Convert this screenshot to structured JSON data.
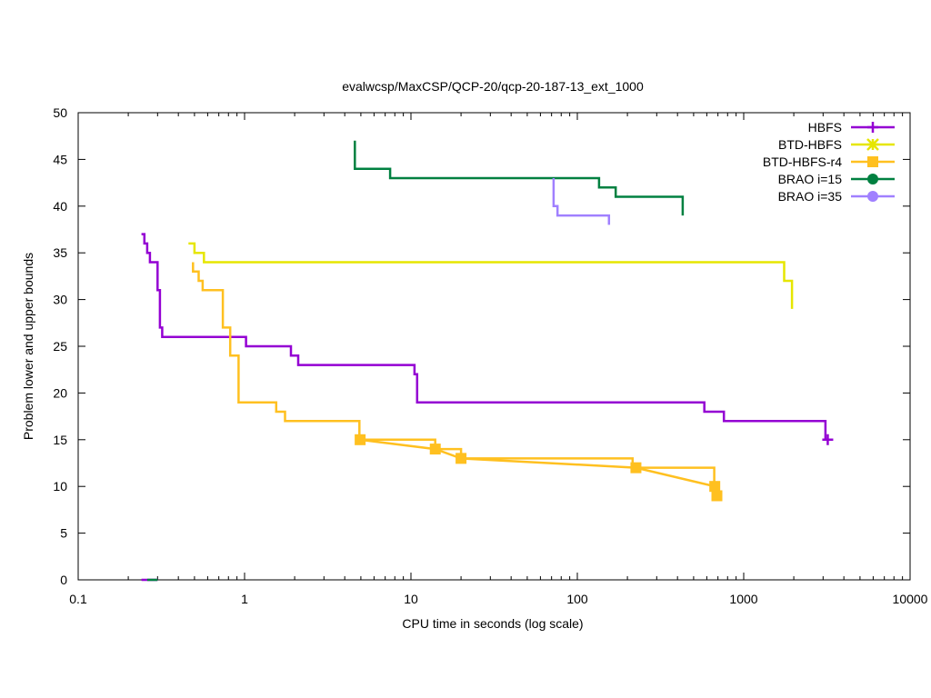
{
  "chart_data": {
    "type": "line",
    "title": "evalwcsp/MaxCSP/QCP-20/qcp-20-187-13_ext_1000",
    "xlabel": "CPU time in seconds (log scale)",
    "ylabel": "Problem lower and upper bounds",
    "xscale": "log",
    "xlim": [
      0.1,
      10000
    ],
    "ylim": [
      0,
      50
    ],
    "xticks": [
      {
        "value": 0.1,
        "label": "0.1"
      },
      {
        "value": 1,
        "label": "1"
      },
      {
        "value": 10,
        "label": "10"
      },
      {
        "value": 100,
        "label": "100"
      },
      {
        "value": 1000,
        "label": "1000"
      },
      {
        "value": 10000,
        "label": "10000"
      }
    ],
    "yticks": [
      {
        "value": 0,
        "label": "0"
      },
      {
        "value": 5,
        "label": "5"
      },
      {
        "value": 10,
        "label": "10"
      },
      {
        "value": 15,
        "label": "15"
      },
      {
        "value": 20,
        "label": "20"
      },
      {
        "value": 25,
        "label": "25"
      },
      {
        "value": 30,
        "label": "30"
      },
      {
        "value": 35,
        "label": "35"
      },
      {
        "value": 40,
        "label": "40"
      },
      {
        "value": 45,
        "label": "45"
      },
      {
        "value": 50,
        "label": "50"
      }
    ],
    "legend_position": "top-right",
    "series": [
      {
        "name": "HBFS",
        "color": "#9400d3",
        "marker": "plus",
        "upper": [
          [
            0.24,
            37
          ],
          [
            0.25,
            37
          ],
          [
            0.25,
            36
          ],
          [
            0.26,
            36
          ],
          [
            0.26,
            35
          ],
          [
            0.27,
            35
          ],
          [
            0.27,
            34
          ],
          [
            0.3,
            34
          ],
          [
            0.3,
            31
          ],
          [
            0.31,
            31
          ],
          [
            0.31,
            27
          ],
          [
            0.32,
            27
          ],
          [
            0.32,
            26
          ],
          [
            1.02,
            26
          ],
          [
            1.02,
            25
          ],
          [
            1.9,
            25
          ],
          [
            1.9,
            24
          ],
          [
            2.1,
            24
          ],
          [
            2.1,
            23
          ],
          [
            10.5,
            23
          ],
          [
            10.5,
            22
          ],
          [
            10.9,
            22
          ],
          [
            10.9,
            19
          ],
          [
            580,
            19
          ],
          [
            580,
            18
          ],
          [
            760,
            18
          ],
          [
            760,
            17
          ],
          [
            3100,
            17
          ],
          [
            3100,
            15
          ]
        ],
        "lower": [
          [
            0.24,
            0
          ],
          [
            0.3,
            0
          ]
        ],
        "markers": [
          [
            3200,
            15
          ]
        ]
      },
      {
        "name": "BTD-HBFS",
        "color": "#e6e600",
        "marker": "star",
        "upper": [
          [
            0.46,
            36
          ],
          [
            0.5,
            36
          ],
          [
            0.5,
            35
          ],
          [
            0.57,
            35
          ],
          [
            0.57,
            34
          ],
          [
            1750,
            34
          ],
          [
            1750,
            32
          ],
          [
            1950,
            32
          ],
          [
            1950,
            29
          ]
        ],
        "lower": [],
        "markers": []
      },
      {
        "name": "BTD-HBFS-r4",
        "color": "#ffc020",
        "marker": "square",
        "upper": [
          [
            0.49,
            34
          ],
          [
            0.49,
            33
          ],
          [
            0.53,
            33
          ],
          [
            0.53,
            32
          ],
          [
            0.56,
            32
          ],
          [
            0.56,
            31
          ],
          [
            0.74,
            31
          ],
          [
            0.74,
            27
          ],
          [
            0.82,
            27
          ],
          [
            0.82,
            24
          ],
          [
            0.92,
            24
          ],
          [
            0.92,
            19
          ],
          [
            1.55,
            19
          ],
          [
            1.55,
            18
          ],
          [
            1.75,
            18
          ],
          [
            1.75,
            17
          ],
          [
            4.9,
            17
          ],
          [
            4.9,
            15
          ],
          [
            14,
            15
          ],
          [
            14,
            14
          ],
          [
            20,
            14
          ],
          [
            20,
            13
          ],
          [
            215,
            13
          ],
          [
            215,
            12
          ],
          [
            665,
            12
          ],
          [
            665,
            10
          ],
          [
            680,
            10
          ],
          [
            680,
            9
          ]
        ],
        "lower": [
          [
            4.9,
            15
          ],
          [
            14,
            14
          ],
          [
            20,
            13
          ],
          [
            225,
            12
          ],
          [
            670,
            10
          ],
          [
            690,
            9
          ]
        ],
        "markers": [
          [
            4.95,
            15
          ],
          [
            14,
            14
          ],
          [
            20,
            13
          ],
          [
            225,
            12
          ],
          [
            670,
            10
          ],
          [
            690,
            9
          ]
        ]
      },
      {
        "name": "BRAO i=15",
        "color": "#008040",
        "marker": "circle",
        "upper": [
          [
            4.6,
            47
          ],
          [
            4.6,
            44
          ],
          [
            7.5,
            44
          ],
          [
            7.5,
            43
          ],
          [
            135,
            43
          ],
          [
            135,
            42
          ],
          [
            170,
            42
          ],
          [
            170,
            41
          ],
          [
            430,
            41
          ],
          [
            430,
            39
          ]
        ],
        "lower": [
          [
            0.26,
            0
          ],
          [
            0.3,
            0
          ]
        ],
        "markers": []
      },
      {
        "name": "BRAO i=35",
        "color": "#a080ff",
        "marker": "circle",
        "upper": [
          [
            72,
            43
          ],
          [
            72,
            40
          ],
          [
            76,
            40
          ],
          [
            76,
            39
          ],
          [
            155,
            39
          ],
          [
            155,
            38
          ]
        ],
        "lower": [],
        "markers": []
      }
    ]
  }
}
